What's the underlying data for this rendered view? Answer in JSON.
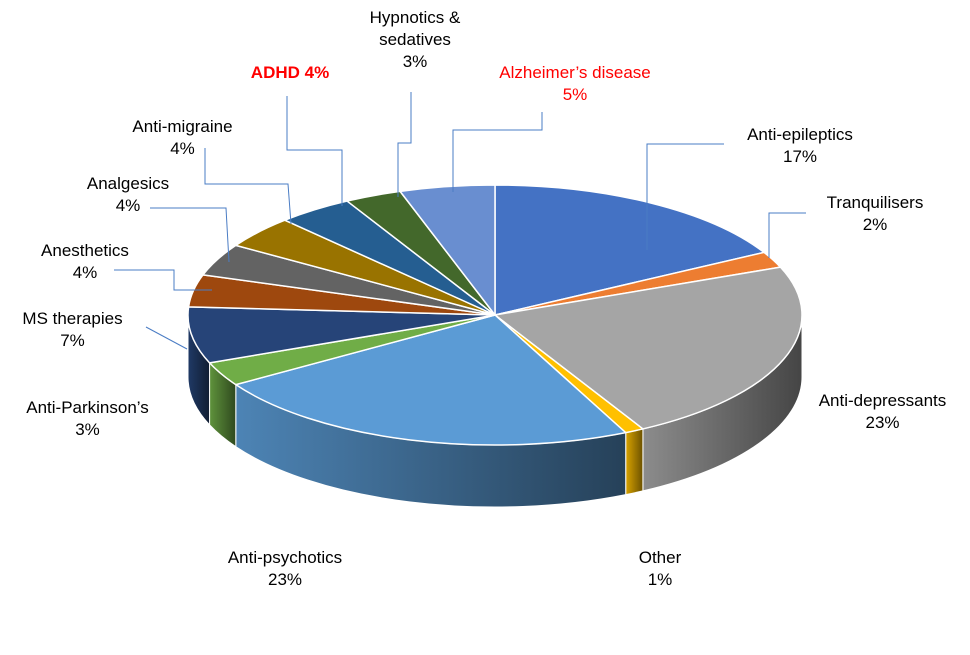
{
  "chart_data": {
    "type": "pie",
    "title": "",
    "style": "3d",
    "slices": [
      {
        "name": "Anti-epileptics",
        "line1": "Anti-epileptics",
        "line2": "17%",
        "value": 17,
        "color": "#4472c4"
      },
      {
        "name": "Tranquilisers",
        "line1": "Tranquilisers",
        "line2": "2%",
        "value": 2,
        "color": "#ed7d31"
      },
      {
        "name": "Anti-depressants",
        "line1": "Anti-depressants",
        "line2": "23%",
        "value": 23,
        "color": "#a5a5a5"
      },
      {
        "name": "Other",
        "line1": "Other",
        "line2": "1%",
        "value": 1,
        "color": "#ffc000"
      },
      {
        "name": "Anti-psychotics",
        "line1": "Anti-psychotics",
        "line2": "23%",
        "value": 23,
        "color": "#5b9bd5"
      },
      {
        "name": "Anti-Parkinson’s",
        "line1": "Anti-Parkinson’s",
        "line2": "3%",
        "value": 3,
        "color": "#70ad47"
      },
      {
        "name": "MS therapies",
        "line1": "MS therapies",
        "line2": "7%",
        "value": 7,
        "color": "#264478"
      },
      {
        "name": "Anesthetics",
        "line1": "Anesthetics",
        "line2": "4%",
        "value": 4,
        "color": "#9e480e"
      },
      {
        "name": "Analgesics",
        "line1": "Analgesics",
        "line2": "4%",
        "value": 4,
        "color": "#636363"
      },
      {
        "name": "Anti-migraine",
        "line1": "Anti-migraine",
        "line2": "4%",
        "value": 4,
        "color": "#997300"
      },
      {
        "name": "ADHD",
        "line1": "ADHD 4%",
        "line2": "",
        "value": 4,
        "color": "#255e91",
        "label_color": "#ff0000",
        "label_bold": true
      },
      {
        "name": "Hypnotics & sedatives",
        "line1": "Hypnotics &",
        "line2": "sedatives",
        "line3": "3%",
        "value": 3,
        "color": "#43682b"
      },
      {
        "name": "Alzheimer’s disease",
        "line1": "Alzheimer’s disease",
        "line2": "5%",
        "value": 5,
        "color": "#698ed0",
        "label_color": "#ff0000"
      }
    ]
  }
}
